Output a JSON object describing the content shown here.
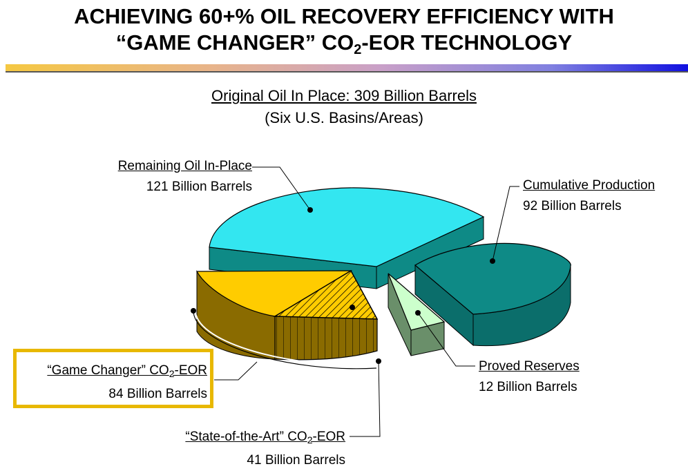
{
  "header": {
    "line1": "ACHIEVING 60+% OIL RECOVERY EFFICIENCY WITH",
    "line2_pre": "“GAME CHANGER” CO",
    "line2_sub": "2",
    "line2_post": "-EOR TECHNOLOGY"
  },
  "chart_data": {
    "type": "pie",
    "title": "Original Oil In Place: 309 Billion Barrels",
    "subtitle": "(Six U.S. Basins/Areas)",
    "unit": "Billion Barrels",
    "total": 309,
    "slices": [
      {
        "label": "Remaining Oil In-Place",
        "value": 121,
        "value_text": "121 Billion Barrels",
        "color": "#33e6f0"
      },
      {
        "label": "Cumulative Production",
        "value": 92,
        "value_text": "92 Billion Barrels",
        "color": "#0e8a86"
      },
      {
        "label": "Proved Reserves",
        "value": 12,
        "value_text": "12 Billion Barrels",
        "color": "#ccffcc"
      },
      {
        "label_pre": "“State-of-the-Art” CO",
        "label_sub": "2",
        "label_post": "-EOR",
        "value": 41,
        "value_text": "41 Billion Barrels",
        "color": "#ffcc00"
      },
      {
        "label_pre": "“Game Changer” CO",
        "label_sub": "2",
        "label_post": "-EOR",
        "value": 84,
        "value_text": "84 Billion Barrels",
        "color": "#ffcc00"
      }
    ]
  }
}
